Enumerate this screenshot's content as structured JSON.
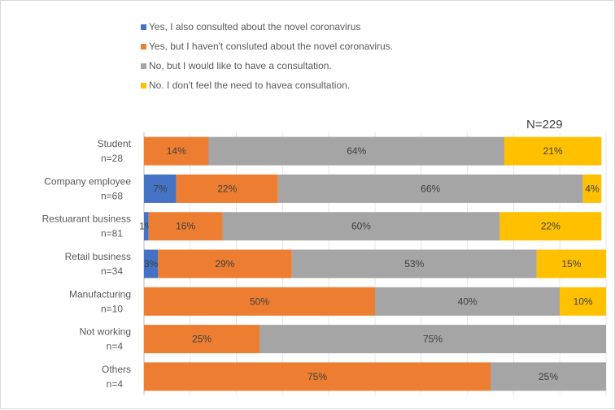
{
  "chart_data": {
    "type": "bar",
    "orientation": "horizontal",
    "stacked": true,
    "annotation": "N=229",
    "categories": [
      [
        "Student",
        "n=28"
      ],
      [
        "Company employee",
        "n=68"
      ],
      [
        "Restuarant business",
        "n=81"
      ],
      [
        "Retail business",
        "n=34"
      ],
      [
        "Manufacturing",
        "n=10"
      ],
      [
        "Not working",
        "n=4"
      ],
      [
        "Others",
        "n=4"
      ]
    ],
    "series": [
      {
        "name": "Yes, I also consulted about the novel coronavirus",
        "color": "#4472C4",
        "values": [
          0,
          7,
          1,
          3,
          0,
          0,
          0
        ],
        "labels": [
          "",
          "7%",
          "1%",
          "3%",
          "",
          "",
          ""
        ]
      },
      {
        "name": "Yes, but I haven't consluted about the novel coronavirus.",
        "color": "#ED7D31",
        "values": [
          14,
          22,
          16,
          29,
          50,
          25,
          75
        ],
        "labels": [
          "14%",
          "22%",
          "16%",
          "29%",
          "50%",
          "25%",
          "75%"
        ]
      },
      {
        "name": "No, but I would like to have a consultation.",
        "color": "#A5A5A5",
        "values": [
          64,
          66,
          60,
          53,
          40,
          75,
          25
        ],
        "labels": [
          "64%",
          "66%",
          "60%",
          "53%",
          "40%",
          "75%",
          "25%"
        ]
      },
      {
        "name": "No. I don't feel the need to havea consultation.",
        "color": "#FFC000",
        "values": [
          21,
          4,
          22,
          15,
          10,
          0,
          0
        ],
        "labels": [
          "21%",
          "4%",
          "22%",
          "15%",
          "10%",
          "",
          ""
        ]
      }
    ],
    "xlim": [
      0,
      100
    ],
    "legend_position": "top",
    "grid": true
  }
}
